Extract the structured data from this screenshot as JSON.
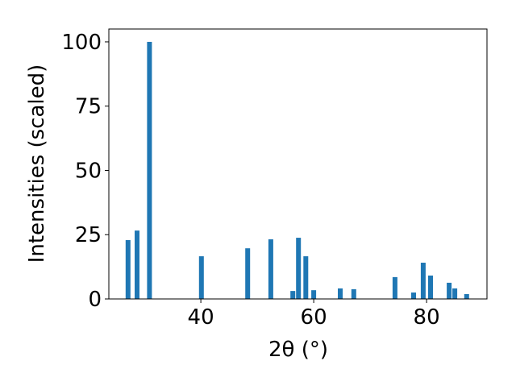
{
  "chart_data": {
    "type": "bar",
    "x_label": "2θ (°)",
    "y_label": "Intensities (scaled)",
    "x": [
      27.1,
      28.7,
      30.9,
      40.1,
      48.3,
      52.4,
      56.3,
      57.3,
      58.6,
      60.0,
      64.7,
      67.1,
      74.4,
      77.7,
      79.4,
      80.7,
      84.0,
      85.0,
      87.1
    ],
    "values": [
      22.9,
      26.6,
      100,
      16.6,
      19.7,
      23.2,
      3.1,
      23.8,
      16.6,
      3.4,
      4.1,
      3.8,
      8.5,
      2.5,
      14.1,
      9.1,
      6.3,
      4.1,
      1.9
    ],
    "color": "#1f77b4",
    "xlim": [
      23.7,
      90.7
    ],
    "xticks": [
      40,
      60,
      80
    ],
    "ylim": [
      0,
      105
    ],
    "yticks": [
      0,
      25,
      50,
      75,
      100
    ]
  }
}
